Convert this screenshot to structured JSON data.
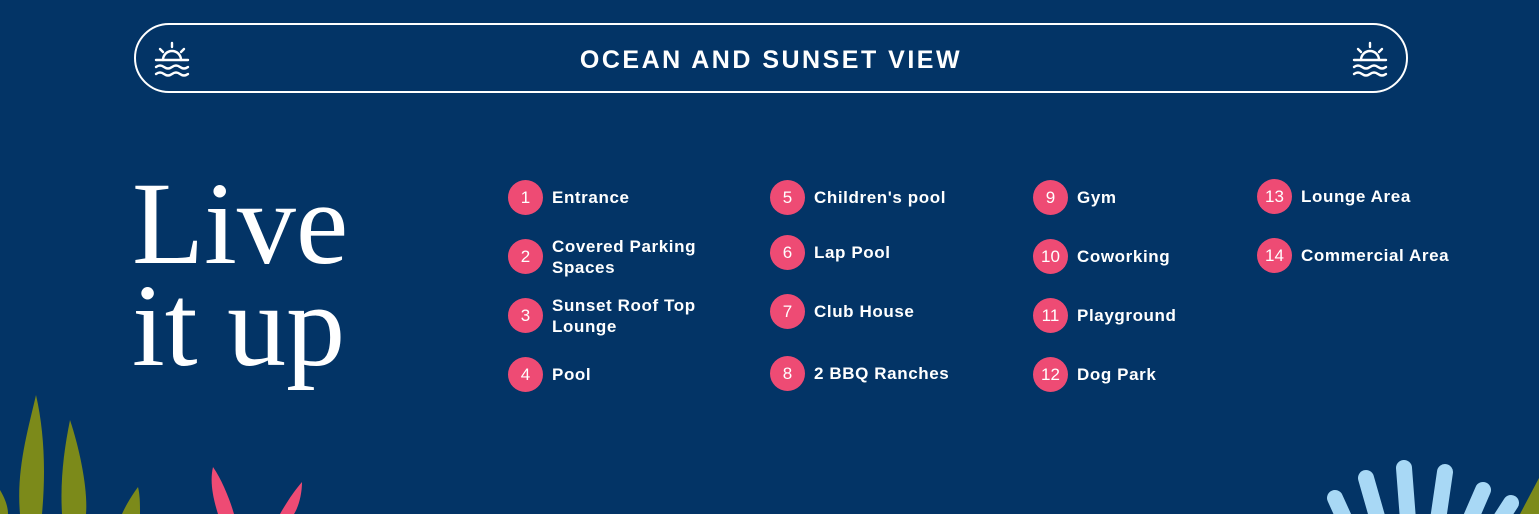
{
  "banner": {
    "title": "OCEAN AND SUNSET VIEW",
    "icon": "sunset-ocean-icon"
  },
  "headline": {
    "line1": "Live",
    "line2": "it up"
  },
  "colors": {
    "background": "#033466",
    "accent": "#ee4b74",
    "olive": "#7c8a1a",
    "light_blue": "#a8d8f5"
  },
  "amenities": [
    {
      "number": "1",
      "label": "Entrance"
    },
    {
      "number": "2",
      "label": "Covered Parking Spaces"
    },
    {
      "number": "3",
      "label": "Sunset Roof Top Lounge"
    },
    {
      "number": "4",
      "label": "Pool"
    },
    {
      "number": "5",
      "label": "Children's pool"
    },
    {
      "number": "6",
      "label": "Lap Pool"
    },
    {
      "number": "7",
      "label": "Club House"
    },
    {
      "number": "8",
      "label": "2 BBQ Ranches"
    },
    {
      "number": "9",
      "label": "Gym"
    },
    {
      "number": "10",
      "label": "Coworking"
    },
    {
      "number": "11",
      "label": "Playground"
    },
    {
      "number": "12",
      "label": "Dog Park"
    },
    {
      "number": "13",
      "label": "Lounge Area"
    },
    {
      "number": "14",
      "label": "Commercial Area"
    }
  ]
}
